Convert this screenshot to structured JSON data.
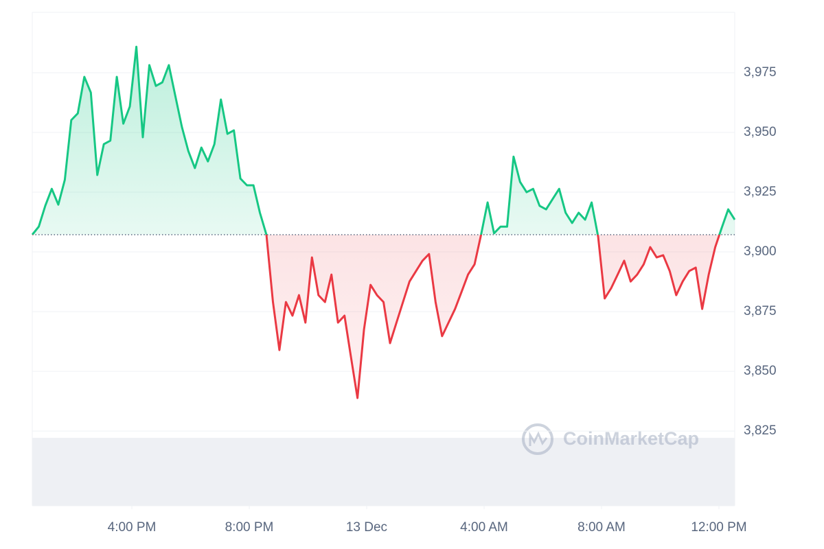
{
  "chart_data": {
    "type": "baseline-line",
    "watermark": "CoinMarketCap",
    "baseline": 3907.2,
    "colors": {
      "above": "#16c784",
      "below": "#ea3943"
    },
    "grid": true,
    "xlim": [
      0,
      108
    ],
    "xticks": [
      {
        "value": 15.31,
        "label": "4:00 PM"
      },
      {
        "value": 33.36,
        "label": "8:00 PM"
      },
      {
        "value": 51.41,
        "label": "13 Dec"
      },
      {
        "value": 69.47,
        "label": "4:00 AM"
      },
      {
        "value": 87.52,
        "label": "8:00 AM"
      },
      {
        "value": 105.57,
        "label": "12:00 PM"
      }
    ],
    "ylim": [
      3793.7,
      4000.3
    ],
    "yticks": [
      {
        "value": 3825,
        "label": "3,825"
      },
      {
        "value": 3850,
        "label": "3,850"
      },
      {
        "value": 3875,
        "label": "3,875"
      },
      {
        "value": 3900,
        "label": "3,900"
      },
      {
        "value": 3925,
        "label": "3,925"
      },
      {
        "value": 3950,
        "label": "3,950"
      },
      {
        "value": 3975,
        "label": "3,975"
      }
    ],
    "values": [
      3907.2,
      3910.6,
      3919.3,
      3926.4,
      3919.8,
      3930.2,
      3955.2,
      3958.0,
      3973.3,
      3966.7,
      3932.2,
      3945.1,
      3946.6,
      3973.3,
      3953.7,
      3960.9,
      3985.9,
      3948.0,
      3978.2,
      3969.5,
      3971.0,
      3978.2,
      3965.2,
      3952.3,
      3942.2,
      3935.1,
      3943.7,
      3937.9,
      3945.1,
      3963.8,
      3949.4,
      3950.9,
      3930.7,
      3927.9,
      3927.9,
      3916.4,
      3907.2,
      3879.0,
      3858.9,
      3879.0,
      3873.3,
      3881.9,
      3870.4,
      3897.7,
      3881.9,
      3879.0,
      3890.5,
      3870.4,
      3873.3,
      3856.0,
      3838.8,
      3867.5,
      3886.2,
      3881.9,
      3879.0,
      3861.8,
      3870.4,
      3879.0,
      3887.6,
      3892.0,
      3896.3,
      3899.1,
      3879.0,
      3864.7,
      3870.4,
      3876.1,
      3883.3,
      3890.5,
      3894.8,
      3907.2,
      3920.7,
      3907.8,
      3910.6,
      3910.6,
      3939.9,
      3929.3,
      3925.0,
      3926.4,
      3919.3,
      3917.8,
      3922.1,
      3926.4,
      3916.4,
      3912.1,
      3916.4,
      3913.5,
      3920.7,
      3906.3,
      3880.5,
      3884.8,
      3890.5,
      3896.3,
      3887.6,
      3890.5,
      3894.8,
      3902.0,
      3897.7,
      3898.6,
      3892.0,
      3881.9,
      3887.6,
      3892.0,
      3893.4,
      3876.1,
      3890.5,
      3902.0,
      3910.1,
      3917.8,
      3913.5
    ]
  }
}
